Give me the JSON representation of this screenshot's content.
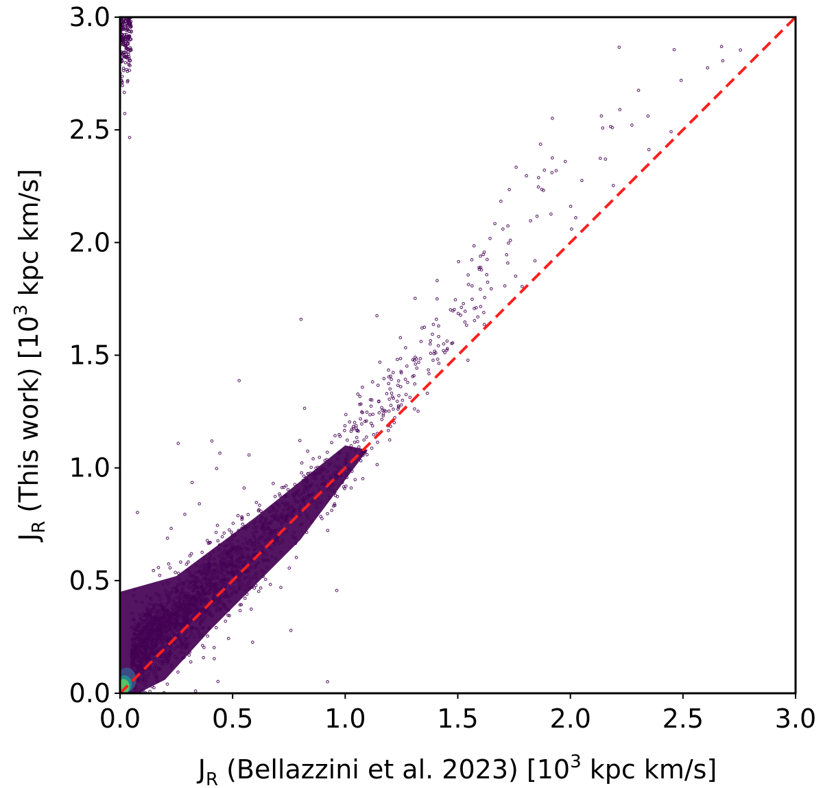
{
  "chart_data": {
    "type": "scatter",
    "xlabel": {
      "symbol": "J",
      "subscript": "R",
      "rest": " (Bellazzini et al.  2023) [10",
      "superscript": "3",
      "unit": " kpc km/s]"
    },
    "ylabel": {
      "symbol": "J",
      "subscript": "R",
      "rest": " (This work) [10",
      "superscript": "3",
      "unit": " kpc km/s]"
    },
    "xlim": [
      0.0,
      3.0
    ],
    "ylim": [
      0.0,
      3.0
    ],
    "xticks": [
      "0.0",
      "0.5",
      "1.0",
      "1.5",
      "2.0",
      "2.5",
      "3.0"
    ],
    "yticks": [
      "0.0",
      "0.5",
      "1.0",
      "1.5",
      "2.0",
      "2.5",
      "3.0"
    ],
    "grid": false,
    "point_color": "#440154",
    "density_colors": [
      "#440154",
      "#3b528b",
      "#21918c",
      "#5ec962"
    ],
    "reference_line": {
      "style": "dashed",
      "color": "#ff1f1f",
      "from": [
        0.0,
        0.0
      ],
      "to": [
        3.0,
        3.0
      ]
    },
    "density_core": [
      {
        "x": 0.03,
        "y": 0.06,
        "level": 1
      },
      {
        "x": 0.02,
        "y": 0.04,
        "level": 2
      },
      {
        "x": 0.015,
        "y": 0.03,
        "level": 3
      }
    ],
    "series_trend": [
      {
        "x": 0.05,
        "y_center": 0.16,
        "y_spread": 0.14
      },
      {
        "x": 0.25,
        "y_center": 0.33,
        "y_spread": 0.15
      },
      {
        "x": 0.5,
        "y_center": 0.55,
        "y_spread": 0.15
      },
      {
        "x": 0.75,
        "y_center": 0.8,
        "y_spread": 0.14
      },
      {
        "x": 1.0,
        "y_center": 1.05,
        "y_spread": 0.15
      },
      {
        "x": 1.25,
        "y_center": 1.35,
        "y_spread": 0.17
      },
      {
        "x": 1.5,
        "y_center": 1.68,
        "y_spread": 0.2
      },
      {
        "x": 1.75,
        "y_center": 2.0,
        "y_spread": 0.25
      },
      {
        "x": 2.0,
        "y_center": 2.3,
        "y_spread": 0.3
      },
      {
        "x": 2.5,
        "y_center": 2.7,
        "y_spread": 0.3
      },
      {
        "x": 3.0,
        "y_center": 2.95,
        "y_spread": 0.2
      }
    ]
  }
}
